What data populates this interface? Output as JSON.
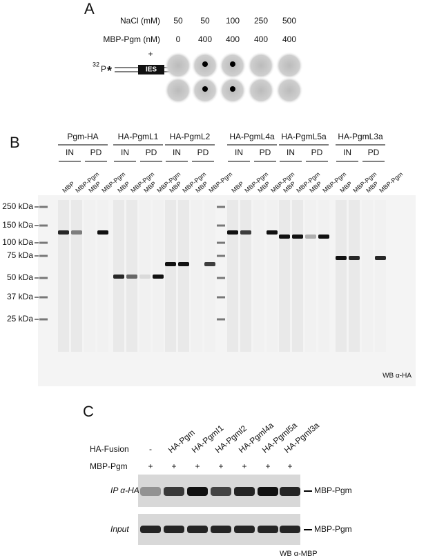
{
  "panel_a": {
    "label": "A",
    "rows": [
      {
        "label": "NaCl (mM)",
        "values": [
          "50",
          "50",
          "100",
          "250",
          "500"
        ]
      },
      {
        "label": "MBP-Pgm (nM)",
        "values": [
          "0",
          "400",
          "400",
          "400",
          "400"
        ]
      }
    ],
    "plus": "+",
    "isotope": "32",
    "element": "P",
    "star": "*",
    "insert": "IES"
  },
  "panel_b": {
    "label": "B",
    "groups": [
      {
        "name": "Pgm-HA",
        "subs": [
          {
            "label": "IN",
            "lanes": [
              "MBP",
              "MBP-Pgm"
            ]
          },
          {
            "label": "PD",
            "lanes": [
              "MBP",
              "MBP-Pgm"
            ]
          }
        ]
      },
      {
        "name": "HA-PgmL1",
        "subs": [
          {
            "label": "IN",
            "lanes": [
              "MBP",
              "MBP-Pgm"
            ]
          },
          {
            "label": "PD",
            "lanes": [
              "MBP",
              "MBP-Pgm"
            ]
          }
        ]
      },
      {
        "name": "HA-PgmL2",
        "subs": [
          {
            "label": "IN",
            "lanes": [
              "MBP",
              "MBP-Pgm"
            ]
          },
          {
            "label": "PD",
            "lanes": [
              "MBP",
              "MBP-Pgm"
            ]
          }
        ]
      },
      {
        "name": "HA-PgmL4a",
        "subs": [
          {
            "label": "IN",
            "lanes": [
              "MBP",
              "MBP-Pgm"
            ]
          },
          {
            "label": "PD",
            "lanes": [
              "MBP",
              "MBP-Pgm"
            ]
          }
        ]
      },
      {
        "name": "HA-PgmL5a",
        "subs": [
          {
            "label": "IN",
            "lanes": [
              "MBP",
              "MBP-Pgm"
            ]
          },
          {
            "label": "PD",
            "lanes": [
              "MBP",
              "MBP-Pgm"
            ]
          }
        ]
      },
      {
        "name": "HA-PgmL3a",
        "subs": [
          {
            "label": "IN",
            "lanes": [
              "MBP",
              "MBP-Pgm"
            ]
          },
          {
            "label": "PD",
            "lanes": [
              "MBP",
              "MBP-Pgm"
            ]
          }
        ]
      }
    ],
    "markers": [
      "250 kDa",
      "150 kDa",
      "100 kDa",
      "75 kDa",
      "50 kDa",
      "37 kDa",
      "25 kDa"
    ],
    "footer": "WB α-HA"
  },
  "panel_c": {
    "label": "C",
    "fusion_label": "HA-Fusion",
    "fusions": [
      "-",
      "HA-Pgm",
      "HA-PgmI1",
      "HA-Pgml2",
      "HA-Pgml4a",
      "HA-Pgml5a",
      "HA-Pgml3a"
    ],
    "mbp_label": "MBP-Pgm",
    "mbp_row": [
      "+",
      "+",
      "+",
      "+",
      "+",
      "+",
      "+"
    ],
    "blots": [
      {
        "label": "IP α-HA",
        "band": "MBP-Pgm"
      },
      {
        "label": "Input",
        "band": "MBP-Pgm"
      }
    ],
    "footer": "WB α-MBP"
  }
}
